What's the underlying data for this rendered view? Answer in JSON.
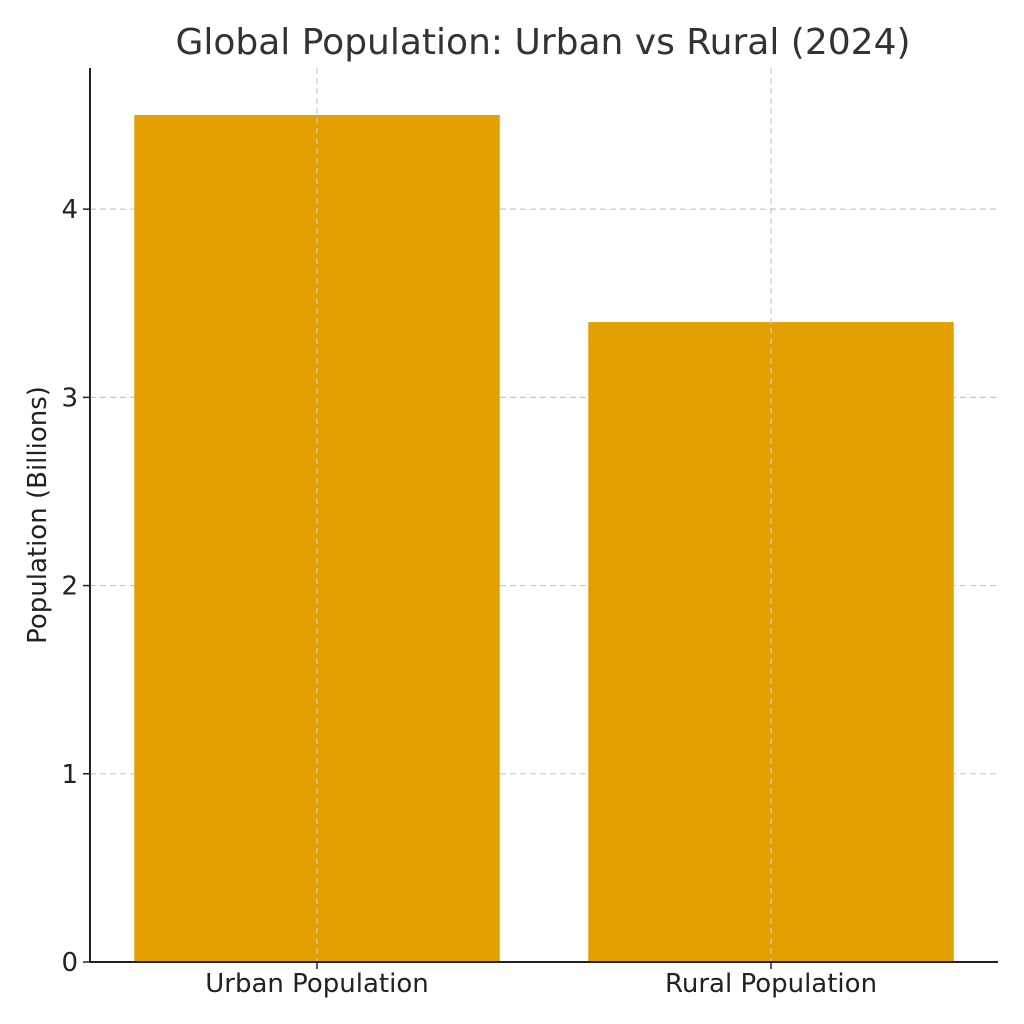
{
  "colors": {
    "bar": "#E3A000",
    "text": "#333333",
    "grid": "#c8c8c8",
    "axis": "#222222"
  },
  "chart_data": {
    "type": "bar",
    "title": "Global Population: Urban vs Rural (2024)",
    "xlabel": "",
    "ylabel": "Population (Billions)",
    "categories": [
      "Urban Population",
      "Rural Population"
    ],
    "values": [
      4.5,
      3.4
    ],
    "ylim": [
      0,
      4.75
    ],
    "yticks": [
      0,
      1,
      2,
      3,
      4
    ],
    "grid": true
  }
}
